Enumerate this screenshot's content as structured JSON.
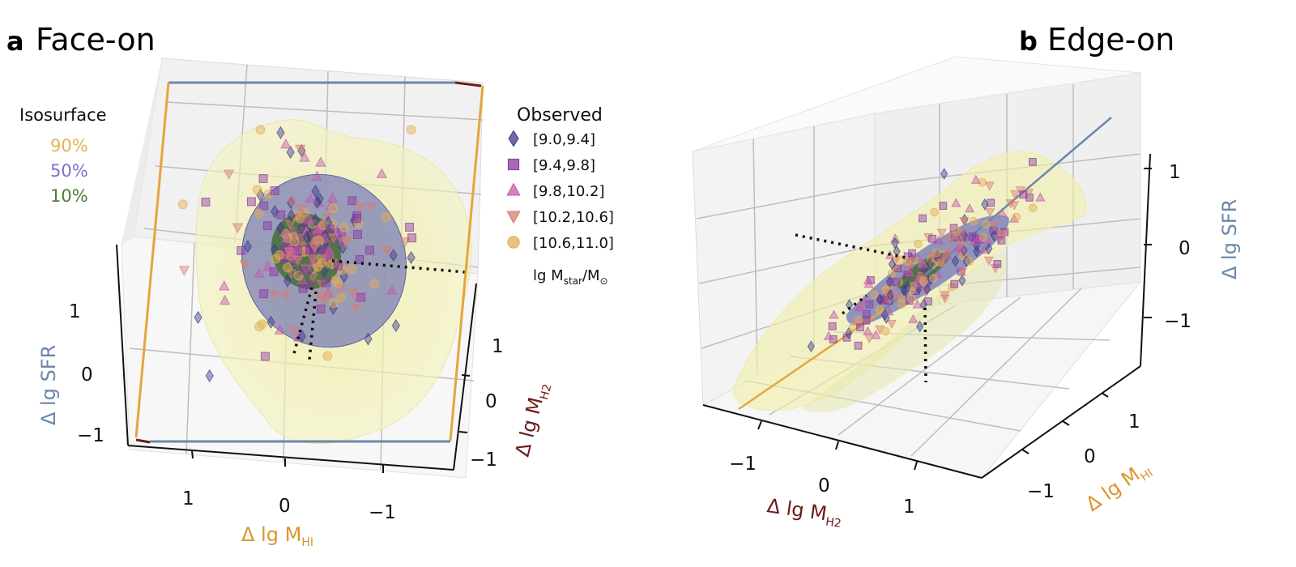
{
  "chart_data": [
    {
      "type": "scatter",
      "panel_letter": "a",
      "title": "Face-on",
      "x_label": "Δ lg M",
      "x_label_sub": "HI",
      "y_label": "Δ lg M",
      "y_label_sub": "H2",
      "z_label": "Δ lg SFR",
      "x_ticks": [
        "1",
        "0",
        "−1"
      ],
      "y_ticks": [
        "1",
        "0",
        "−1"
      ],
      "z_ticks": [
        "1",
        "0",
        "−1"
      ],
      "isosurface_title": "Isosurface",
      "isosurfaces": [
        {
          "label": "90%",
          "color": "#e3b453"
        },
        {
          "label": "50%",
          "color": "#7f72c9"
        },
        {
          "label": "10%",
          "color": "#4e7d34"
        }
      ],
      "legend_title": "Observed",
      "legend_unit": "lg M",
      "legend_unit_sub": "star",
      "legend_unit_tail": "/M",
      "legend_unit_tail_sub": "⊙",
      "series": [
        {
          "name": "[9.0,9.4]",
          "marker": "diamond",
          "color": "#3d3b8a"
        },
        {
          "name": "[9.4,9.8]",
          "marker": "square",
          "color": "#8a37a1"
        },
        {
          "name": "[9.8,10.2]",
          "marker": "triangle-up",
          "color": "#c35aa8"
        },
        {
          "name": "[10.2,10.6]",
          "marker": "triangle-down",
          "color": "#d87c73"
        },
        {
          "name": "[10.6,11.0]",
          "marker": "circle",
          "color": "#e2ae56"
        }
      ]
    },
    {
      "type": "scatter",
      "panel_letter": "b",
      "title": "Edge-on",
      "x_label": "Δ lg M",
      "x_label_sub": "H2",
      "y_label": "Δ lg M",
      "y_label_sub": "HI",
      "z_label": "Δ lg SFR",
      "x_ticks": [
        "−1",
        "0",
        "1"
      ],
      "y_ticks": [
        "1",
        "0",
        "−1"
      ],
      "z_ticks": [
        "1",
        "0",
        "−1"
      ]
    }
  ],
  "colors": {
    "sfr_axis": "#6a87a8",
    "hi_axis": "#d9962d",
    "h2_axis": "#6b1a1a",
    "surface_90": "#f2f0a8",
    "surface_50": "#7076b8",
    "surface_10": "#3f6b2e"
  }
}
